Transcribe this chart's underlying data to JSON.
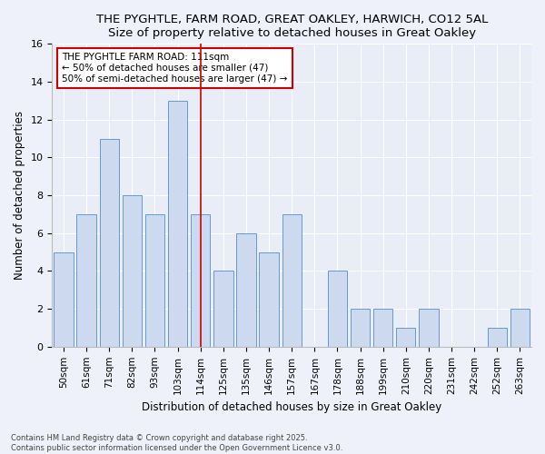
{
  "title": "THE PYGHTLE, FARM ROAD, GREAT OAKLEY, HARWICH, CO12 5AL",
  "subtitle": "Size of property relative to detached houses in Great Oakley",
  "xlabel": "Distribution of detached houses by size in Great Oakley",
  "ylabel": "Number of detached properties",
  "categories": [
    "50sqm",
    "61sqm",
    "71sqm",
    "82sqm",
    "93sqm",
    "103sqm",
    "114sqm",
    "125sqm",
    "135sqm",
    "146sqm",
    "157sqm",
    "167sqm",
    "178sqm",
    "188sqm",
    "199sqm",
    "210sqm",
    "220sqm",
    "231sqm",
    "242sqm",
    "252sqm",
    "263sqm"
  ],
  "values": [
    5,
    7,
    11,
    8,
    7,
    13,
    7,
    4,
    6,
    5,
    7,
    0,
    4,
    2,
    2,
    1,
    2,
    0,
    0,
    1,
    2
  ],
  "bar_color": "#ccd9ef",
  "bar_edge_color": "#6699cc",
  "background_color": "#e8edf8",
  "grid_color": "#ffffff",
  "vline_x_index": 6,
  "vline_color": "#cc0000",
  "annotation_text": "THE PYGHTLE FARM ROAD: 111sqm\n← 50% of detached houses are smaller (47)\n50% of semi-detached houses are larger (47) →",
  "annotation_box_color": "#cc0000",
  "footer": "Contains HM Land Registry data © Crown copyright and database right 2025.\nContains public sector information licensed under the Open Government Licence v3.0.",
  "ylim": [
    0,
    16
  ],
  "yticks": [
    0,
    2,
    4,
    6,
    8,
    10,
    12,
    14,
    16
  ],
  "fig_width": 6.0,
  "fig_height": 5.0,
  "dpi": 100
}
